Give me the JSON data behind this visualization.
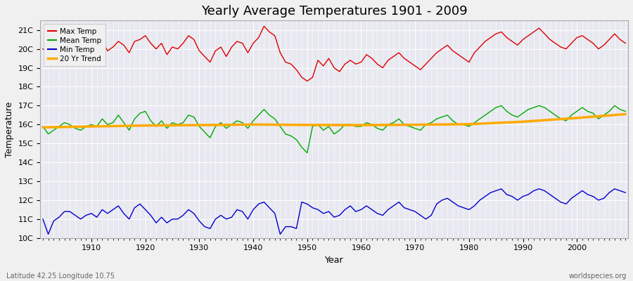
{
  "title": "Yearly Average Temperatures 1901 - 2009",
  "xlabel": "Year",
  "ylabel": "Temperature",
  "footnote_left": "Latitude 42.25 Longitude 10.75",
  "footnote_right": "worldspecies.org",
  "bg_color": "#f0f0f0",
  "plot_bg_color": "#e8e8f0",
  "grid_color": "#ffffff",
  "ylim": [
    10.0,
    21.5
  ],
  "yticks": [
    10,
    11,
    12,
    13,
    14,
    15,
    16,
    17,
    18,
    19,
    20,
    21
  ],
  "ytick_labels": [
    "10C",
    "11C",
    "12C",
    "13C",
    "14C",
    "15C",
    "16C",
    "17C",
    "18C",
    "19C",
    "20C",
    "21C"
  ],
  "year_start": 1901,
  "year_end": 2009,
  "max_temp": [
    20.0,
    19.8,
    20.1,
    19.7,
    20.0,
    20.2,
    20.4,
    19.7,
    20.1,
    19.6,
    20.0,
    20.4,
    19.9,
    20.1,
    20.4,
    20.2,
    19.8,
    20.4,
    20.5,
    20.7,
    20.3,
    20.0,
    20.3,
    19.7,
    20.1,
    20.0,
    20.3,
    20.7,
    20.5,
    19.9,
    19.6,
    19.3,
    19.9,
    20.1,
    19.6,
    20.1,
    20.4,
    20.3,
    19.8,
    20.3,
    20.6,
    21.2,
    20.9,
    20.7,
    19.8,
    19.3,
    19.2,
    18.9,
    18.5,
    18.3,
    18.5,
    19.4,
    19.1,
    19.5,
    19.0,
    18.8,
    19.2,
    19.4,
    19.2,
    19.3,
    19.7,
    19.5,
    19.2,
    19.0,
    19.4,
    19.6,
    19.8,
    19.5,
    19.3,
    19.1,
    18.9,
    19.2,
    19.5,
    19.8,
    20.0,
    20.2,
    19.9,
    19.7,
    19.5,
    19.3,
    19.8,
    20.1,
    20.4,
    20.6,
    20.8,
    20.9,
    20.6,
    20.4,
    20.2,
    20.5,
    20.7,
    20.9,
    21.1,
    20.8,
    20.5,
    20.3,
    20.1,
    20.0,
    20.3,
    20.6,
    20.7,
    20.5,
    20.3,
    20.0,
    20.2,
    20.5,
    20.8,
    20.5,
    20.3
  ],
  "mean_temp": [
    15.9,
    15.5,
    15.7,
    15.9,
    16.1,
    16.0,
    15.8,
    15.7,
    15.9,
    16.0,
    15.9,
    16.3,
    16.0,
    16.1,
    16.5,
    16.1,
    15.7,
    16.3,
    16.6,
    16.7,
    16.2,
    15.9,
    16.2,
    15.8,
    16.1,
    16.0,
    16.1,
    16.5,
    16.4,
    15.9,
    15.6,
    15.3,
    15.9,
    16.1,
    15.8,
    16.0,
    16.2,
    16.1,
    15.8,
    16.2,
    16.5,
    16.8,
    16.5,
    16.3,
    15.9,
    15.5,
    15.4,
    15.2,
    14.8,
    14.5,
    15.9,
    16.0,
    15.7,
    15.9,
    15.5,
    15.7,
    16.0,
    16.0,
    15.9,
    15.9,
    16.1,
    16.0,
    15.8,
    15.7,
    16.0,
    16.1,
    16.3,
    16.0,
    15.9,
    15.8,
    15.7,
    16.0,
    16.1,
    16.3,
    16.4,
    16.5,
    16.2,
    16.0,
    16.0,
    15.9,
    16.1,
    16.3,
    16.5,
    16.7,
    16.9,
    17.0,
    16.7,
    16.5,
    16.4,
    16.6,
    16.8,
    16.9,
    17.0,
    16.9,
    16.7,
    16.5,
    16.3,
    16.2,
    16.5,
    16.7,
    16.9,
    16.7,
    16.6,
    16.3,
    16.5,
    16.7,
    17.0,
    16.8,
    16.7
  ],
  "min_temp": [
    11.0,
    10.2,
    10.9,
    11.1,
    11.4,
    11.4,
    11.2,
    11.0,
    11.2,
    11.3,
    11.1,
    11.5,
    11.3,
    11.5,
    11.7,
    11.3,
    11.0,
    11.6,
    11.8,
    11.5,
    11.2,
    10.8,
    11.1,
    10.8,
    11.0,
    11.0,
    11.2,
    11.5,
    11.3,
    10.9,
    10.6,
    10.5,
    11.0,
    11.2,
    11.0,
    11.1,
    11.5,
    11.4,
    11.0,
    11.5,
    11.8,
    11.9,
    11.6,
    11.3,
    10.2,
    10.6,
    10.6,
    10.5,
    11.9,
    11.8,
    11.6,
    11.5,
    11.3,
    11.4,
    11.1,
    11.2,
    11.5,
    11.7,
    11.4,
    11.5,
    11.7,
    11.5,
    11.3,
    11.2,
    11.5,
    11.7,
    11.9,
    11.6,
    11.5,
    11.4,
    11.2,
    11.0,
    11.2,
    11.8,
    12.0,
    12.1,
    11.9,
    11.7,
    11.6,
    11.5,
    11.7,
    12.0,
    12.2,
    12.4,
    12.5,
    12.6,
    12.3,
    12.2,
    12.0,
    12.2,
    12.3,
    12.5,
    12.6,
    12.5,
    12.3,
    12.1,
    11.9,
    11.8,
    12.1,
    12.3,
    12.5,
    12.3,
    12.2,
    12.0,
    12.1,
    12.4,
    12.6,
    12.5,
    12.4
  ],
  "trend_years": [
    1901,
    1910,
    1920,
    1930,
    1940,
    1950,
    1960,
    1970,
    1980,
    1990,
    2000,
    2009
  ],
  "trend_values": [
    15.85,
    15.9,
    15.95,
    15.97,
    16.0,
    15.98,
    15.97,
    15.99,
    16.02,
    16.15,
    16.35,
    16.55
  ],
  "line_colors": {
    "max": "#dd0000",
    "mean": "#00aa00",
    "min": "#0000cc",
    "trend": "#ffaa00"
  },
  "line_widths": {
    "max": 1.0,
    "mean": 1.0,
    "min": 1.0,
    "trend": 2.5
  },
  "legend_labels": [
    "Max Temp",
    "Mean Temp",
    "Min Temp",
    "20 Yr Trend"
  ],
  "xticks": [
    1910,
    1920,
    1930,
    1940,
    1950,
    1960,
    1970,
    1980,
    1990,
    2000
  ],
  "title_fontsize": 13,
  "axis_fontsize": 9,
  "tick_fontsize": 8
}
